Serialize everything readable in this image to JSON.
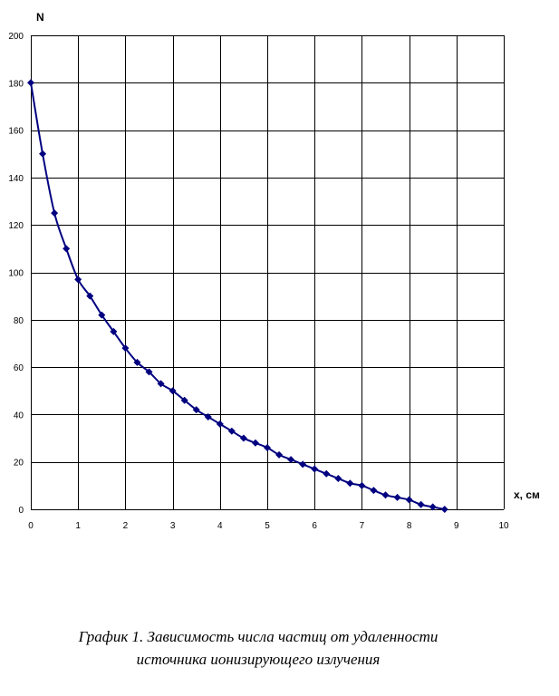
{
  "chart_data": {
    "type": "line",
    "title": "",
    "xlabel": "x, см",
    "ylabel": "N",
    "xlim": [
      0,
      10
    ],
    "ylim": [
      0,
      200
    ],
    "x_ticks": [
      0,
      1,
      2,
      3,
      4,
      5,
      6,
      7,
      8,
      9,
      10
    ],
    "y_ticks": [
      0,
      20,
      40,
      60,
      80,
      100,
      120,
      140,
      160,
      180,
      200
    ],
    "grid": true,
    "legend": "none",
    "series": [
      {
        "color": "#000080",
        "marker": "diamond",
        "x": [
          0,
          0.25,
          0.5,
          0.75,
          1,
          1.25,
          1.5,
          1.75,
          2,
          2.25,
          2.5,
          2.75,
          3,
          3.25,
          3.5,
          3.75,
          4,
          4.25,
          4.5,
          4.75,
          5,
          5.25,
          5.5,
          5.75,
          6,
          6.25,
          6.5,
          6.75,
          7,
          7.25,
          7.5,
          7.75,
          8,
          8.25,
          8.5,
          8.75
        ],
        "y": [
          180,
          150,
          125,
          110,
          97,
          90,
          82,
          75,
          68,
          62,
          58,
          53,
          50,
          46,
          42,
          39,
          36,
          33,
          30,
          28,
          26,
          23,
          21,
          19,
          17,
          15,
          13,
          11,
          10,
          8,
          6,
          5,
          4,
          2,
          1,
          0
        ]
      }
    ]
  },
  "caption": {
    "line1": "График 1. Зависимость числа частиц от удаленности",
    "line2": "источника ионизирующего излучения"
  }
}
